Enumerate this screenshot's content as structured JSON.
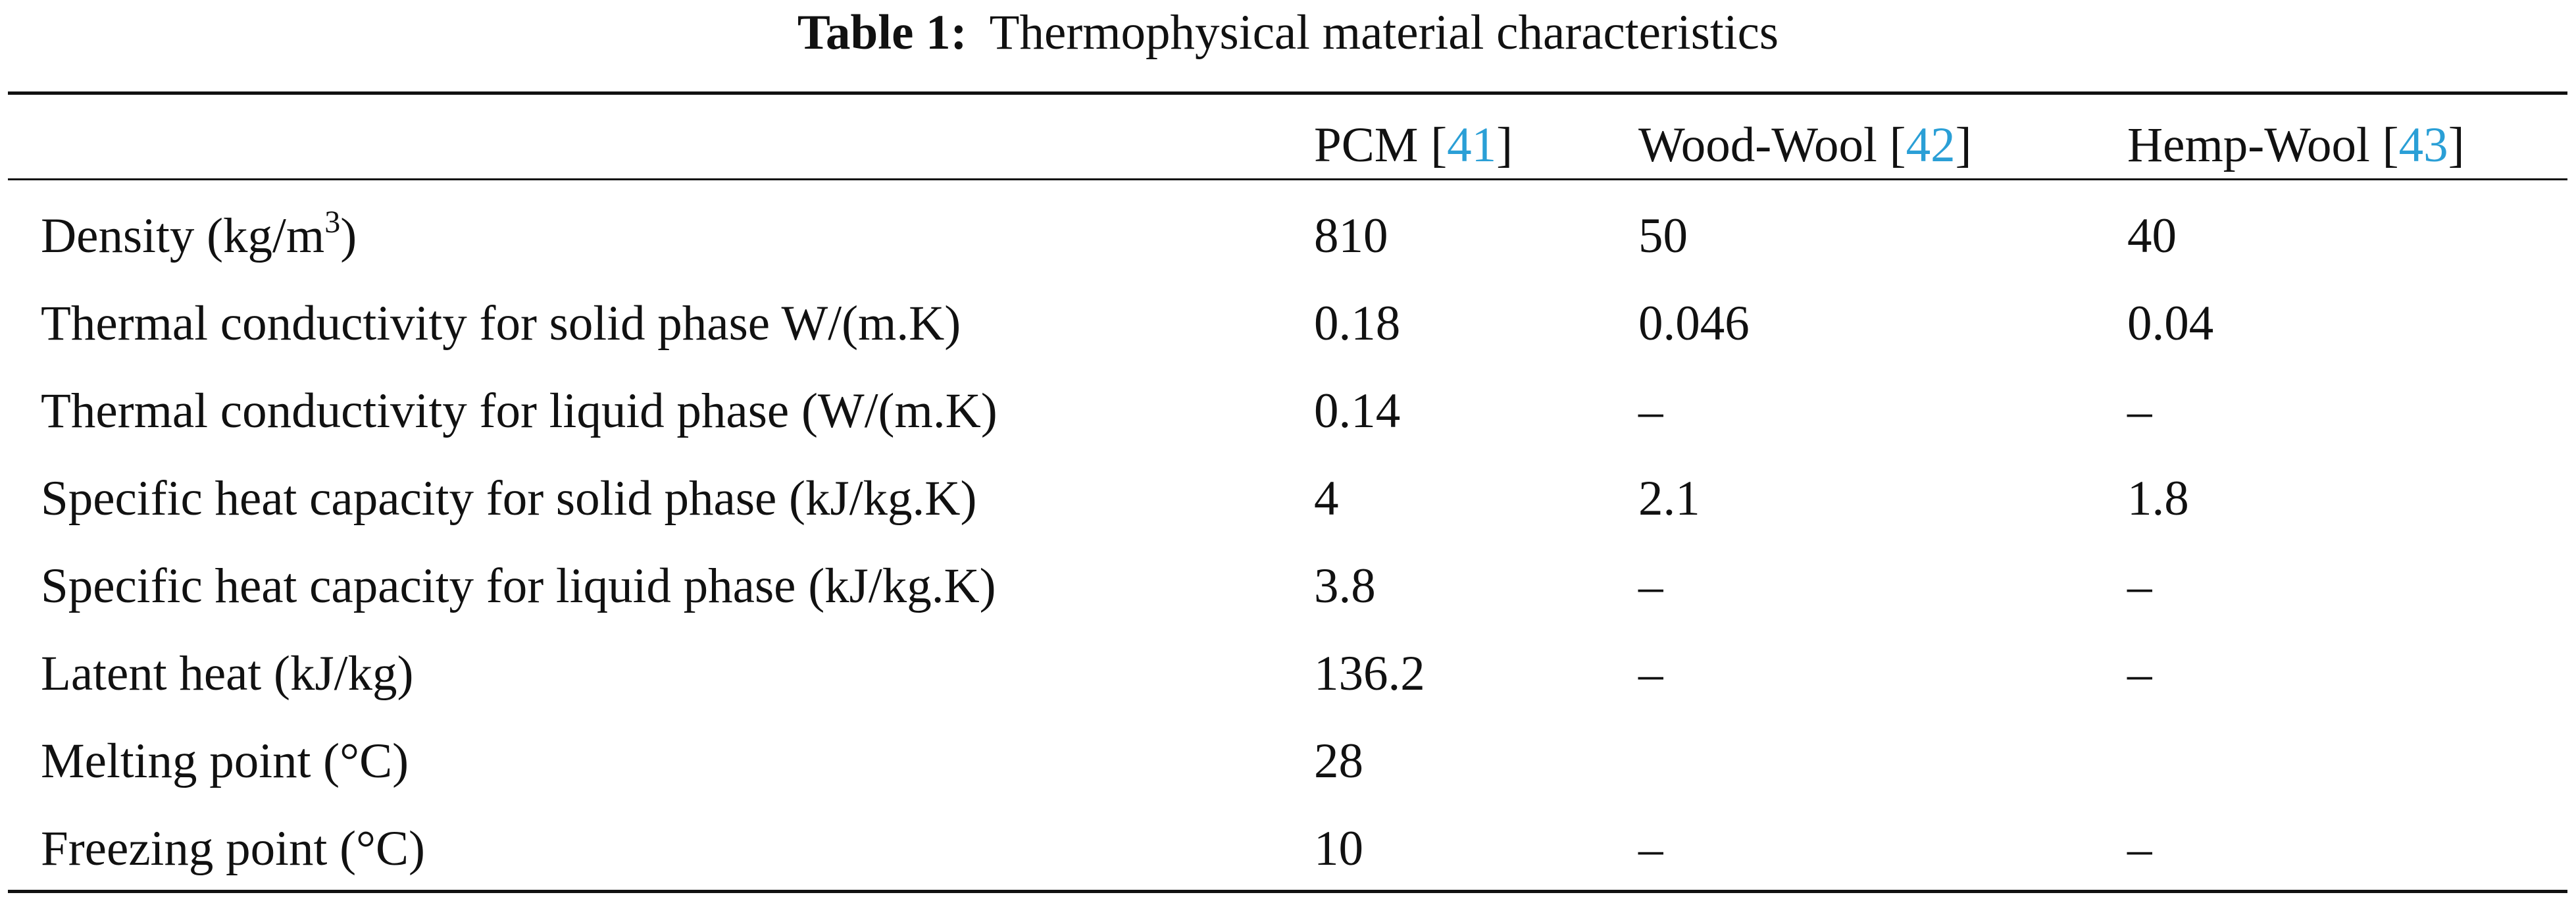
{
  "table": {
    "caption_label": "Table 1:",
    "caption_text": "Thermophysical material characteristics",
    "columns": [
      {
        "name": "PCM",
        "ref": "41"
      },
      {
        "name": "Wood-Wool",
        "ref": "42"
      },
      {
        "name": "Hemp-Wool",
        "ref": "43"
      }
    ],
    "density_label_pre": "Density (kg/m",
    "density_label_sup": "3",
    "density_label_post": ")",
    "rows": [
      {
        "label": "Density (kg/m3)",
        "values": [
          "810",
          "50",
          "40"
        ]
      },
      {
        "label": "Thermal conductivity for solid phase W/(m.K)",
        "values": [
          "0.18",
          "0.046",
          "0.04"
        ]
      },
      {
        "label": "Thermal conductivity for liquid phase (W/(m.K)",
        "values": [
          "0.14",
          "–",
          "–"
        ]
      },
      {
        "label": "Specific heat capacity for solid phase (kJ/kg.K)",
        "values": [
          "4",
          "2.1",
          "1.8"
        ]
      },
      {
        "label": "Specific heat capacity for liquid phase (kJ/kg.K)",
        "values": [
          "3.8",
          "–",
          "–"
        ]
      },
      {
        "label": "Latent heat (kJ/kg)",
        "values": [
          "136.2",
          "–",
          "–"
        ]
      },
      {
        "label": "Melting point (°C)",
        "values": [
          "28",
          "",
          ""
        ]
      },
      {
        "label": "Freezing point (°C)",
        "values": [
          "10",
          "–",
          "–"
        ]
      }
    ]
  }
}
